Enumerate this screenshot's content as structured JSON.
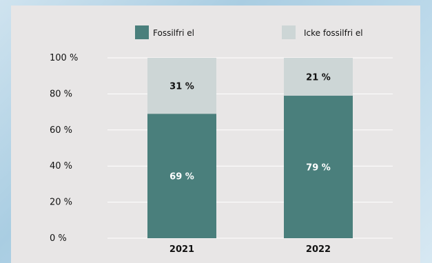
{
  "chart_data": {
    "type": "bar",
    "stacked": true,
    "percent": true,
    "categories": [
      "2021",
      "2022"
    ],
    "series": [
      {
        "name": "Fossilfri el",
        "values": [
          69,
          79
        ],
        "labels": [
          "69 %",
          "79 %"
        ],
        "color": "#4a7f7c",
        "label_color": "#ffffff"
      },
      {
        "name": "Icke fossilfri el",
        "values": [
          31,
          21
        ],
        "labels": [
          "31 %",
          "21 %"
        ],
        "color": "#cdd6d6",
        "label_color": "#111111"
      }
    ],
    "ylim": [
      0,
      100
    ],
    "yticks": [
      0,
      20,
      40,
      60,
      80,
      100
    ],
    "ytick_labels": [
      "0 %",
      "20 %",
      "40 %",
      "60 %",
      "80 %",
      "100 %"
    ],
    "grid": true,
    "legend": "top"
  }
}
